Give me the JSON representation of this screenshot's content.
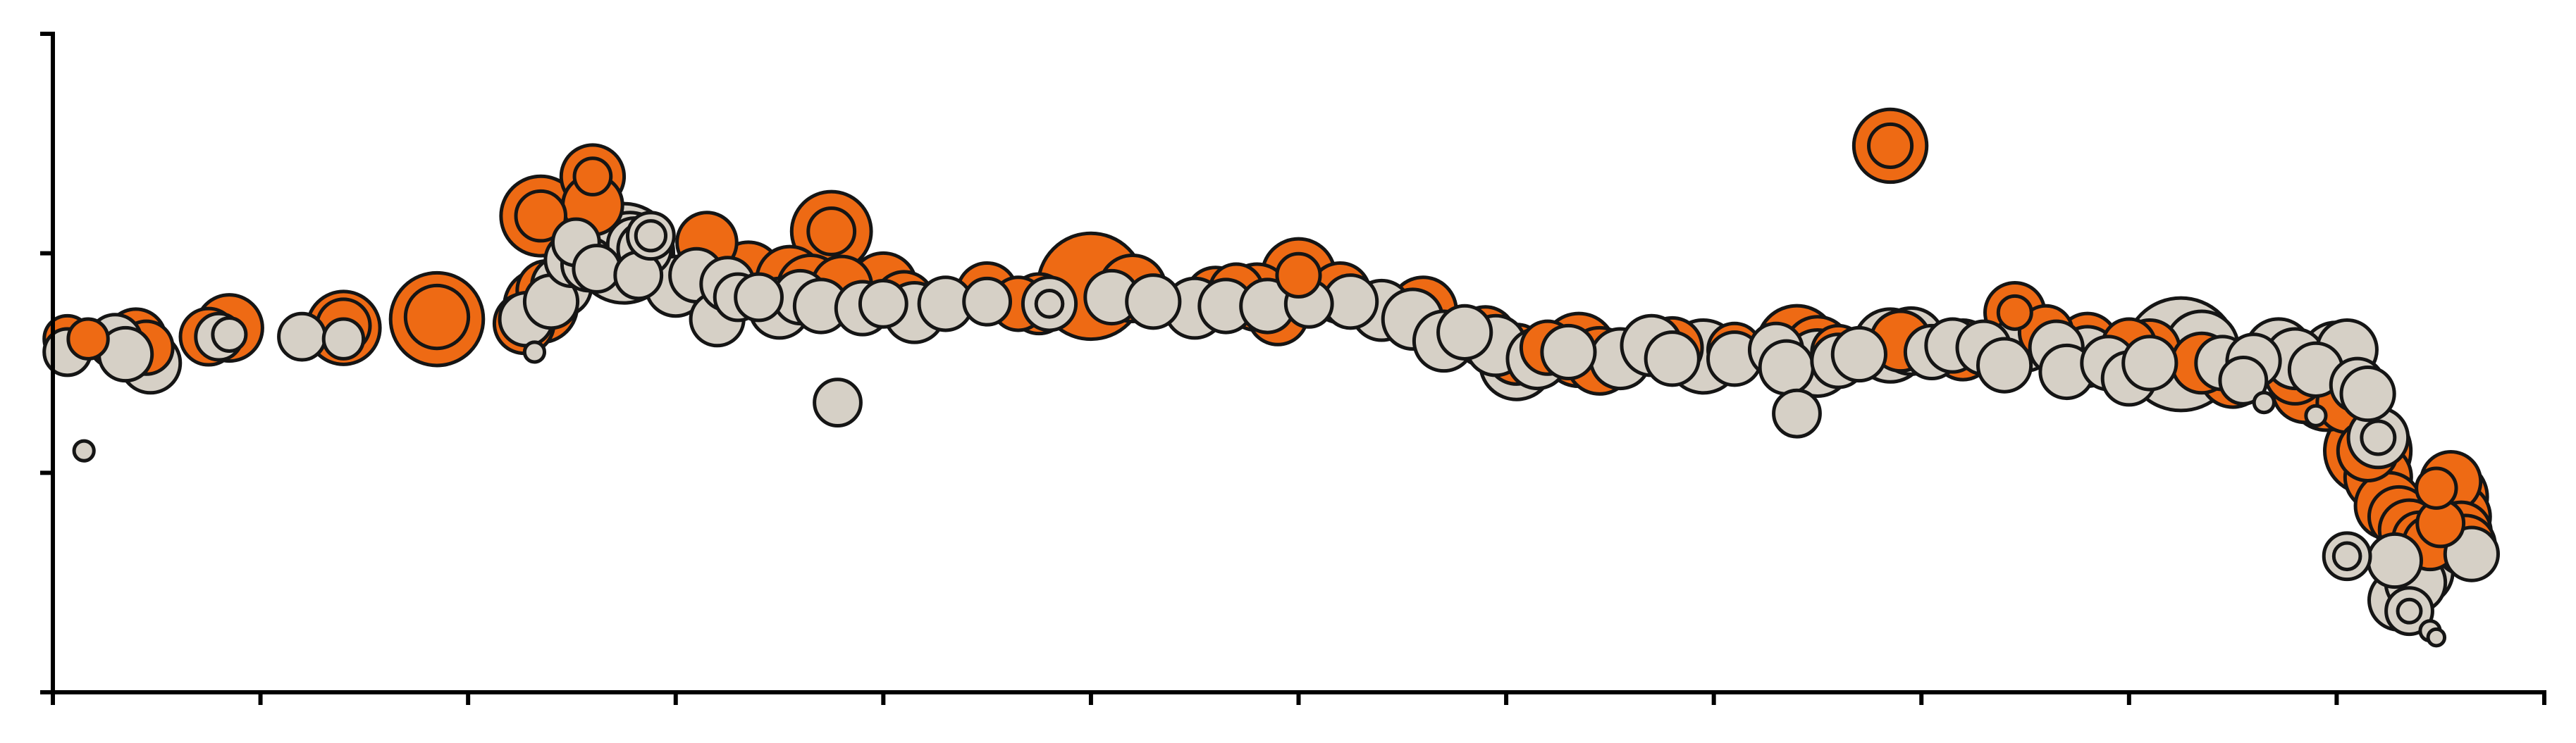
{
  "chart_data": {
    "type": "scatter",
    "title": "",
    "xlabel": "",
    "ylabel": "",
    "xlim": [
      0,
      12
    ],
    "ylim": [
      0,
      3
    ],
    "grid": false,
    "legend": "none",
    "colors": {
      "orange": "#ee6a14",
      "beige": "#d6d0c6",
      "outline": "#151515",
      "axis": "#000000",
      "background": "#ffffff"
    },
    "series": [
      {
        "color_key": "orange",
        "points": [
          [
            0.07,
            1.61,
            14
          ],
          [
            0.17,
            1.61,
            12
          ],
          [
            0.4,
            1.61,
            18
          ],
          [
            0.45,
            1.57,
            16
          ],
          [
            0.75,
            1.62,
            17
          ],
          [
            0.85,
            1.66,
            20
          ],
          [
            1.4,
            1.66,
            22
          ],
          [
            1.4,
            1.67,
            16
          ],
          [
            1.85,
            1.7,
            28
          ],
          [
            1.85,
            1.71,
            19
          ],
          [
            2.27,
            1.68,
            18
          ],
          [
            2.35,
            1.76,
            22
          ],
          [
            2.38,
            1.83,
            18
          ],
          [
            2.35,
            2.17,
            24
          ],
          [
            2.35,
            2.17,
            15
          ],
          [
            2.6,
            2.22,
            18
          ],
          [
            2.6,
            2.35,
            19
          ],
          [
            2.6,
            2.35,
            11
          ],
          [
            3.15,
            2.05,
            18
          ],
          [
            3.35,
            1.9,
            20
          ],
          [
            3.55,
            1.88,
            20
          ],
          [
            3.65,
            1.84,
            20
          ],
          [
            3.8,
            1.85,
            18
          ],
          [
            3.75,
            2.1,
            24
          ],
          [
            3.75,
            2.1,
            14
          ],
          [
            4.0,
            1.85,
            20
          ],
          [
            4.1,
            1.78,
            18
          ],
          [
            4.5,
            1.82,
            18
          ],
          [
            4.65,
            1.77,
            16
          ],
          [
            4.75,
            1.77,
            18
          ],
          [
            5.0,
            1.85,
            32
          ],
          [
            5.2,
            1.84,
            20
          ],
          [
            5.6,
            1.8,
            18
          ],
          [
            5.7,
            1.83,
            16
          ],
          [
            5.8,
            1.8,
            20
          ],
          [
            5.9,
            1.72,
            18
          ],
          [
            6.0,
            1.9,
            22
          ],
          [
            6.0,
            1.9,
            13
          ],
          [
            6.2,
            1.82,
            18
          ],
          [
            6.6,
            1.74,
            20
          ],
          [
            6.9,
            1.62,
            18
          ],
          [
            7.05,
            1.54,
            18
          ],
          [
            7.2,
            1.57,
            16
          ],
          [
            7.35,
            1.56,
            22
          ],
          [
            7.45,
            1.51,
            20
          ],
          [
            7.8,
            1.57,
            18
          ],
          [
            8.1,
            1.56,
            16
          ],
          [
            8.4,
            1.58,
            24
          ],
          [
            8.5,
            1.56,
            20
          ],
          [
            8.6,
            1.55,
            16
          ],
          [
            8.85,
            2.49,
            22
          ],
          [
            8.85,
            2.49,
            13
          ],
          [
            8.9,
            1.6,
            18
          ],
          [
            9.2,
            1.56,
            18
          ],
          [
            9.45,
            1.73,
            18
          ],
          [
            9.45,
            1.73,
            10
          ],
          [
            9.6,
            1.64,
            16
          ],
          [
            9.8,
            1.59,
            18
          ],
          [
            10.0,
            1.58,
            16
          ],
          [
            10.1,
            1.56,
            18
          ],
          [
            10.35,
            1.5,
            18
          ],
          [
            10.5,
            1.45,
            20
          ],
          [
            10.8,
            1.45,
            18
          ],
          [
            10.85,
            1.38,
            20
          ],
          [
            10.95,
            1.36,
            22
          ],
          [
            11.05,
            1.32,
            18
          ],
          [
            11.15,
            1.1,
            26
          ],
          [
            11.15,
            1.1,
            18
          ],
          [
            11.2,
            0.98,
            20
          ],
          [
            11.25,
            0.85,
            20
          ],
          [
            11.3,
            0.8,
            18
          ],
          [
            11.35,
            0.74,
            18
          ],
          [
            11.4,
            0.7,
            16
          ],
          [
            11.45,
            0.68,
            16
          ],
          [
            11.55,
            0.96,
            18
          ],
          [
            11.55,
            0.89,
            22
          ],
          [
            11.58,
            0.8,
            20
          ],
          [
            11.6,
            0.73,
            18
          ],
          [
            11.62,
            0.67,
            18
          ],
          [
            11.48,
            0.93,
            12
          ],
          [
            11.5,
            0.77,
            14
          ]
        ]
      },
      {
        "color_key": "beige",
        "points": [
          [
            0.07,
            1.55,
            14
          ],
          [
            0.15,
            1.1,
            6
          ],
          [
            0.3,
            1.6,
            16
          ],
          [
            0.35,
            1.54,
            16
          ],
          [
            0.47,
            1.5,
            18
          ],
          [
            0.8,
            1.62,
            14
          ],
          [
            0.85,
            1.63,
            10
          ],
          [
            1.2,
            1.62,
            14
          ],
          [
            1.4,
            1.61,
            12
          ],
          [
            2.28,
            1.7,
            16
          ],
          [
            2.32,
            1.55,
            6
          ],
          [
            2.4,
            1.78,
            16
          ],
          [
            2.45,
            1.85,
            18
          ],
          [
            2.5,
            1.97,
            16
          ],
          [
            2.52,
            2.05,
            14
          ],
          [
            2.58,
            1.95,
            16
          ],
          [
            2.62,
            1.93,
            14
          ],
          [
            2.75,
            2.0,
            30
          ],
          [
            2.78,
            2.02,
            22
          ],
          [
            2.8,
            2.04,
            16
          ],
          [
            2.82,
            1.9,
            14
          ],
          [
            2.85,
            2.02,
            16
          ],
          [
            2.88,
            2.08,
            14
          ],
          [
            2.88,
            2.08,
            9
          ],
          [
            3.0,
            1.85,
            18
          ],
          [
            3.1,
            1.9,
            16
          ],
          [
            3.2,
            1.7,
            16
          ],
          [
            3.25,
            1.86,
            16
          ],
          [
            3.3,
            1.8,
            14
          ],
          [
            3.4,
            1.8,
            14
          ],
          [
            3.5,
            1.75,
            18
          ],
          [
            3.6,
            1.8,
            16
          ],
          [
            3.7,
            1.76,
            16
          ],
          [
            3.78,
            1.32,
            14
          ],
          [
            3.9,
            1.75,
            16
          ],
          [
            4.0,
            1.77,
            14
          ],
          [
            4.15,
            1.73,
            18
          ],
          [
            4.3,
            1.77,
            16
          ],
          [
            4.5,
            1.78,
            14
          ],
          [
            4.8,
            1.77,
            16
          ],
          [
            4.8,
            1.77,
            8
          ],
          [
            5.1,
            1.8,
            16
          ],
          [
            5.3,
            1.78,
            16
          ],
          [
            5.5,
            1.75,
            18
          ],
          [
            5.65,
            1.76,
            16
          ],
          [
            5.85,
            1.76,
            16
          ],
          [
            6.05,
            1.77,
            14
          ],
          [
            6.25,
            1.78,
            16
          ],
          [
            6.4,
            1.74,
            18
          ],
          [
            6.55,
            1.7,
            18
          ],
          [
            6.7,
            1.6,
            18
          ],
          [
            6.8,
            1.64,
            16
          ],
          [
            6.95,
            1.58,
            18
          ],
          [
            7.05,
            1.5,
            22
          ],
          [
            7.15,
            1.52,
            18
          ],
          [
            7.3,
            1.55,
            16
          ],
          [
            7.55,
            1.52,
            18
          ],
          [
            7.7,
            1.58,
            18
          ],
          [
            7.8,
            1.52,
            16
          ],
          [
            7.95,
            1.53,
            22
          ],
          [
            8.1,
            1.52,
            16
          ],
          [
            8.3,
            1.56,
            16
          ],
          [
            8.35,
            1.48,
            16
          ],
          [
            8.4,
            1.27,
            14
          ],
          [
            8.5,
            1.5,
            20
          ],
          [
            8.6,
            1.51,
            16
          ],
          [
            8.7,
            1.54,
            16
          ],
          [
            8.85,
            1.58,
            22
          ],
          [
            8.95,
            1.6,
            20
          ],
          [
            9.05,
            1.55,
            16
          ],
          [
            9.15,
            1.58,
            16
          ],
          [
            9.3,
            1.57,
            16
          ],
          [
            9.4,
            1.49,
            16
          ],
          [
            9.5,
            1.6,
            18
          ],
          [
            9.65,
            1.57,
            16
          ],
          [
            9.7,
            1.46,
            16
          ],
          [
            9.8,
            1.53,
            18
          ],
          [
            9.9,
            1.5,
            16
          ],
          [
            10.0,
            1.43,
            16
          ],
          [
            10.1,
            1.5,
            16
          ],
          [
            10.25,
            1.54,
            34
          ],
          [
            10.35,
            1.57,
            22
          ],
          [
            10.45,
            1.5,
            16
          ],
          [
            10.55,
            1.42,
            14
          ],
          [
            10.6,
            1.51,
            16
          ],
          [
            10.65,
            1.32,
            6
          ],
          [
            10.72,
            1.55,
            20
          ],
          [
            10.8,
            1.52,
            18
          ],
          [
            10.9,
            1.47,
            16
          ],
          [
            10.9,
            1.26,
            6
          ],
          [
            11.0,
            1.52,
            22
          ],
          [
            11.05,
            1.56,
            18
          ],
          [
            11.1,
            1.4,
            16
          ],
          [
            11.15,
            1.36,
            16
          ],
          [
            11.2,
            1.16,
            18
          ],
          [
            11.2,
            1.16,
            10
          ],
          [
            11.05,
            0.62,
            14
          ],
          [
            11.05,
            0.62,
            8
          ],
          [
            11.28,
            0.6,
            16
          ],
          [
            11.3,
            0.42,
            18
          ],
          [
            11.35,
            0.37,
            14
          ],
          [
            11.35,
            0.37,
            7
          ],
          [
            11.38,
            0.5,
            18
          ],
          [
            11.4,
            0.55,
            20
          ],
          [
            11.45,
            0.28,
            6
          ],
          [
            11.48,
            0.25,
            5
          ],
          [
            11.65,
            0.63,
            16
          ]
        ]
      }
    ]
  }
}
